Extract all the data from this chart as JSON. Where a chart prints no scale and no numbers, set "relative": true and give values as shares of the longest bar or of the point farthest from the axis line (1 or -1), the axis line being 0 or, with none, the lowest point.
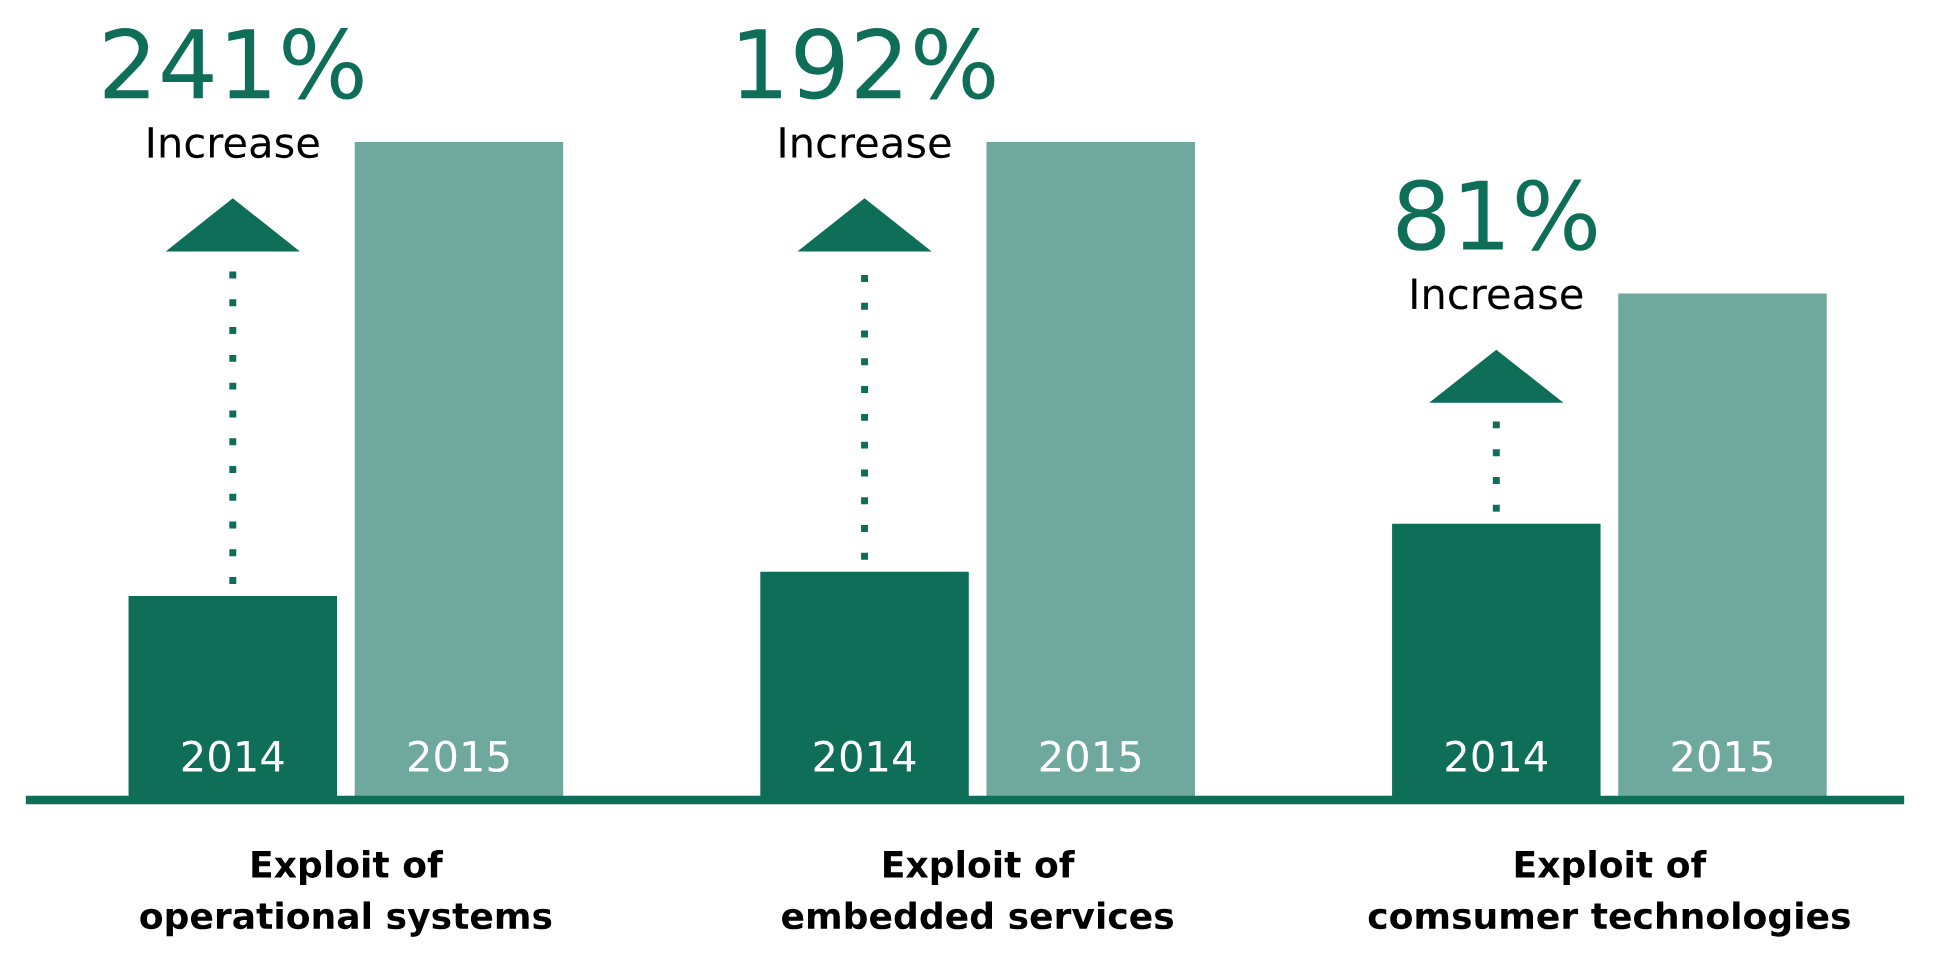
{
  "chart_data": {
    "type": "bar",
    "relative": true,
    "legend": false,
    "categories": [
      "Exploit of\noperational systems",
      "Exploit of\nembedded services",
      "Exploit of\ncomsumer technologies"
    ],
    "series": [
      {
        "name": "2014",
        "color": "#0e6e58",
        "values": [
          0.31,
          0.347,
          0.42
        ]
      },
      {
        "name": "2015",
        "color": "#6fa89c",
        "values": [
          1,
          1,
          0.77
        ]
      }
    ],
    "annotations": [
      "241%\nIncrease",
      "192%\nIncrease",
      "81%\nIncrease"
    ]
  }
}
